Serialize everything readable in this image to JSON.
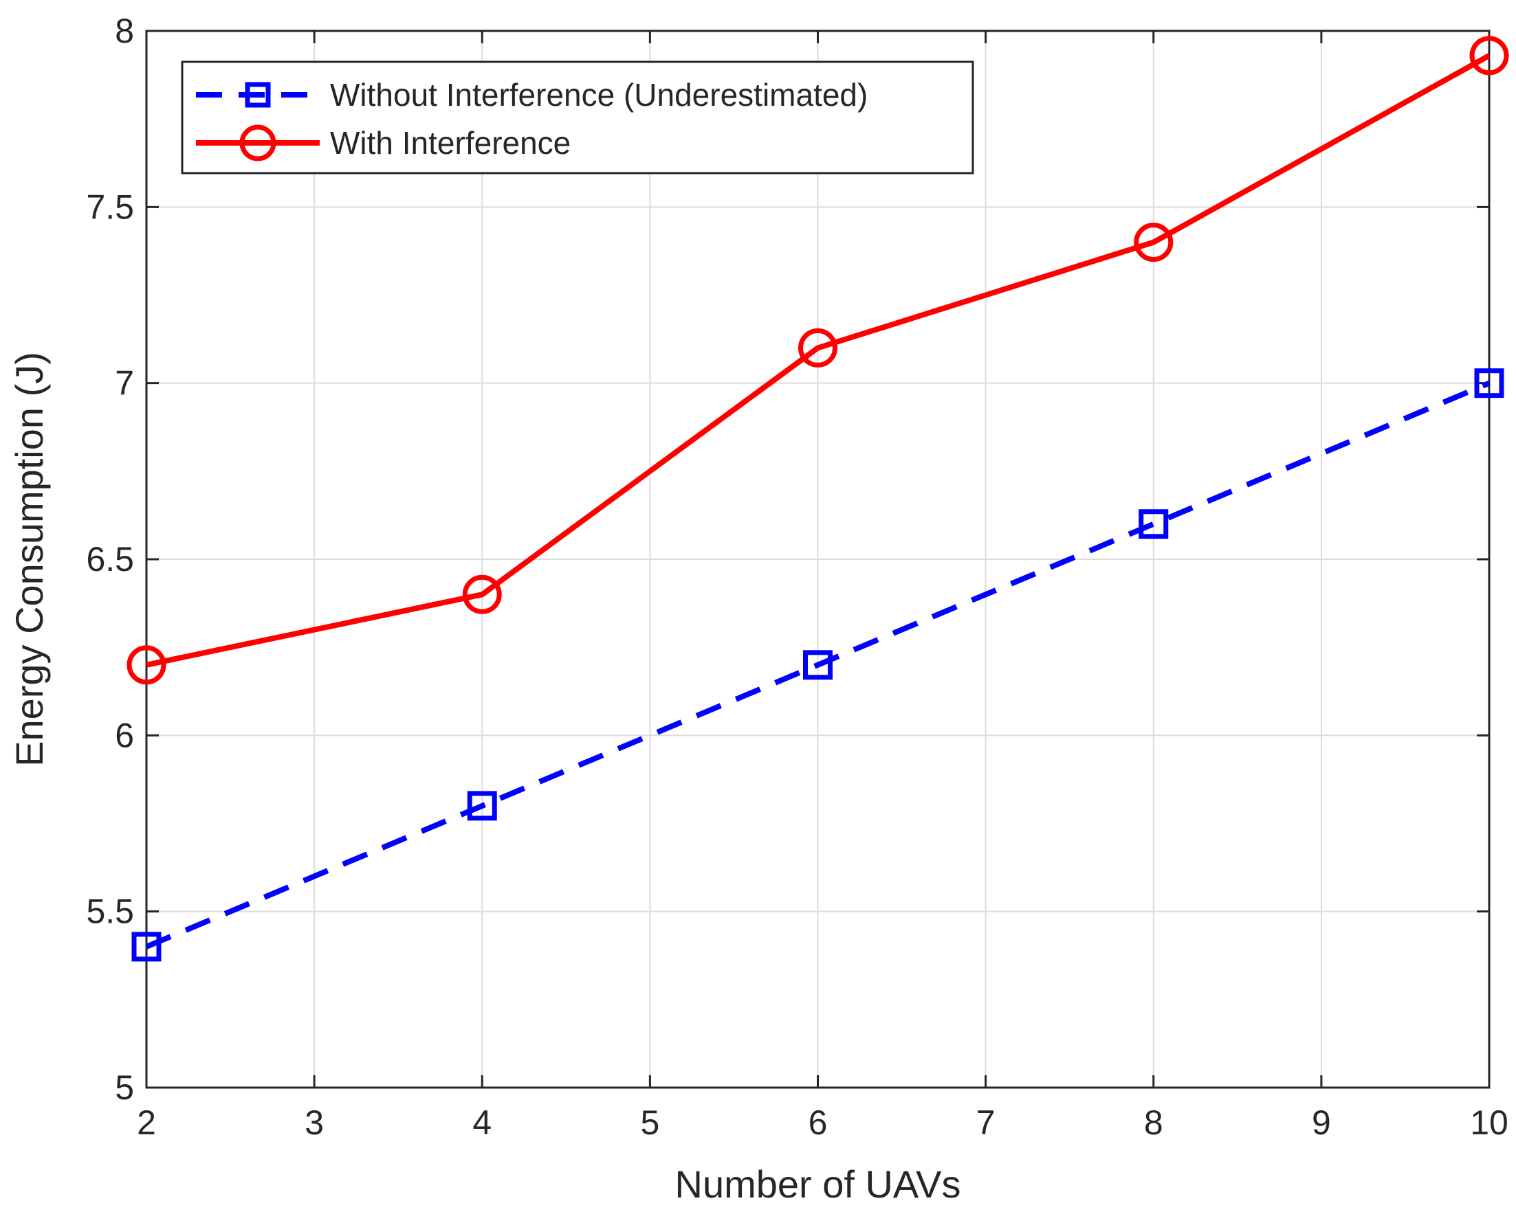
{
  "chart_data": {
    "type": "line",
    "xlabel": "Number of UAVs",
    "ylabel": "Energy Consumption (J)",
    "xlim": [
      2,
      10
    ],
    "ylim": [
      5,
      8
    ],
    "xticks": [
      2,
      3,
      4,
      5,
      6,
      7,
      8,
      9,
      10
    ],
    "yticks": [
      5,
      5.5,
      6,
      6.5,
      7,
      7.5,
      8
    ],
    "ytick_labels": [
      "5",
      "5.5",
      "6",
      "6.5",
      "7",
      "7.5",
      "8"
    ],
    "grid": true,
    "legend_position": "top-left",
    "series": [
      {
        "name": "Without Interference (Underestimated)",
        "x": [
          2,
          4,
          6,
          8,
          10
        ],
        "values": [
          5.4,
          5.8,
          6.2,
          6.6,
          7.0
        ],
        "color": "#0000ff",
        "line_style": "dashed",
        "marker": "square"
      },
      {
        "name": "With Interference",
        "x": [
          2,
          4,
          6,
          8,
          10
        ],
        "values": [
          6.2,
          6.4,
          7.1,
          7.4,
          7.93
        ],
        "color": "#ff0000",
        "line_style": "solid",
        "marker": "circle"
      }
    ]
  }
}
